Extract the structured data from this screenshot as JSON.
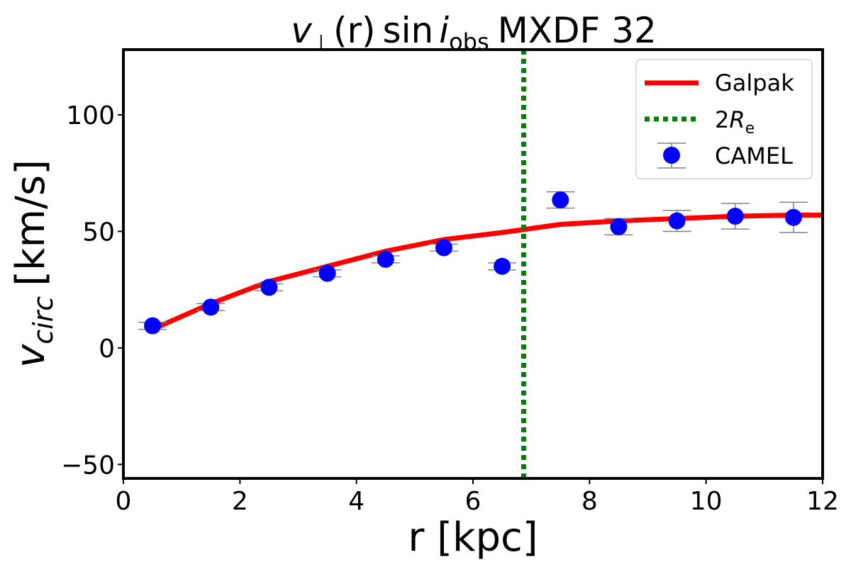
{
  "chart_data": {
    "type": "line",
    "title": {
      "symbol": "v",
      "perp": "⊥",
      "arg": "(r)",
      "func": "sin",
      "inc": "i",
      "inc_sub": "obs",
      "object": "MXDF 32"
    },
    "xlabel": "r [kpc]",
    "ylabel": {
      "symbol": "v",
      "sub": "circ",
      "unit": "[km/s]"
    },
    "xlim": [
      0,
      12
    ],
    "ylim": [
      -56,
      128
    ],
    "xticks": [
      0,
      2,
      4,
      6,
      8,
      10,
      12
    ],
    "xtick_labels": [
      "0",
      "2",
      "4",
      "6",
      "8",
      "10",
      "12"
    ],
    "yticks": [
      -50,
      0,
      50,
      100
    ],
    "ytick_labels": [
      "−50",
      "0",
      "50",
      "100"
    ],
    "galpak": {
      "name": "Galpak",
      "color": "#ff0000",
      "x": [
        0.5,
        1.5,
        2.5,
        3.5,
        4.5,
        5.5,
        6.5,
        7.5,
        8.5,
        9.5,
        10.5,
        11.5,
        12.0
      ],
      "y": [
        8,
        19,
        28.5,
        35,
        41.5,
        46.5,
        49.5,
        53,
        54.5,
        55.5,
        56.5,
        57,
        57
      ]
    },
    "re_line": {
      "name_prefix": "2",
      "name_symbol": "R",
      "name_sub": "e",
      "color": "#008000",
      "x": 6.87
    },
    "camel": {
      "name": "CAMEL",
      "color": "#0000ff",
      "errorbar_color": "#808080",
      "x": [
        0.5,
        1.5,
        2.5,
        3.5,
        4.5,
        5.5,
        6.5,
        7.5,
        8.5,
        9.5,
        10.5,
        11.5
      ],
      "y": [
        9.5,
        17.5,
        26,
        32,
        38,
        43,
        35,
        63.5,
        52,
        54.5,
        56.5,
        56
      ],
      "err": [
        1.5,
        1.5,
        1.5,
        1.5,
        1.5,
        1.5,
        1.5,
        3.5,
        3.5,
        4.5,
        5.5,
        6.5
      ]
    },
    "legend_position": "top-right",
    "grid": false
  }
}
